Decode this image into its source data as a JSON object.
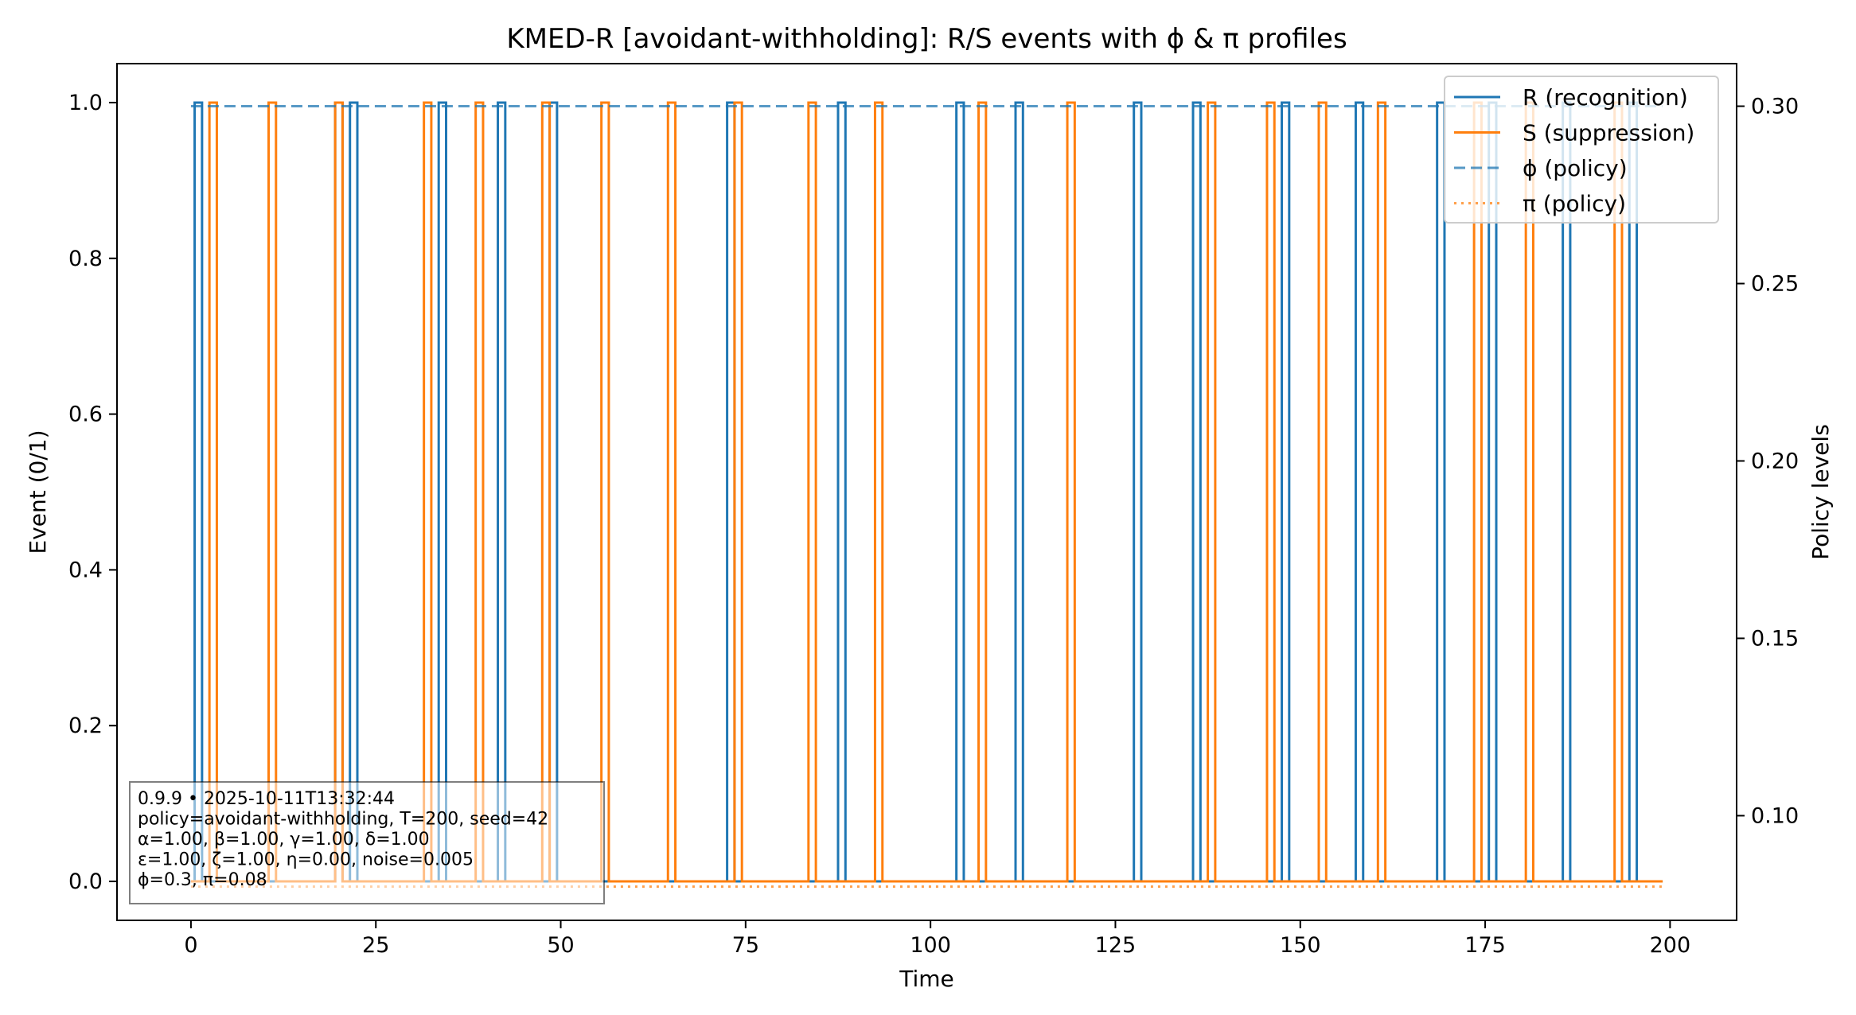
{
  "chart_data": {
    "type": "line",
    "title": "KMED-R [avoidant-withholding]: R/S events with ϕ & π profiles",
    "xlabel": "Time",
    "ylabel": "Event (0/1)",
    "y2label": "Policy levels",
    "xlim": [
      -10,
      209
    ],
    "ylim": [
      -0.05,
      1.05
    ],
    "y2lim": [
      0.0705,
      0.312
    ],
    "xticks": [
      0,
      25,
      50,
      75,
      100,
      125,
      150,
      175,
      200
    ],
    "yticks": [
      0.0,
      0.2,
      0.4,
      0.6,
      0.8,
      1.0
    ],
    "ytick_labels": [
      "0.0",
      "0.2",
      "0.4",
      "0.6",
      "0.8",
      "1.0"
    ],
    "y2ticks": [
      0.1,
      0.15,
      0.2,
      0.25,
      0.3
    ],
    "y2tick_labels": [
      "0.10",
      "0.15",
      "0.20",
      "0.25",
      "0.30"
    ],
    "t_max": 199,
    "series": [
      {
        "name": "R (recognition)",
        "style": "solid",
        "color": "#1f77b4",
        "axis": "left",
        "events": [
          1,
          20,
          22,
          34,
          42,
          49,
          73,
          88,
          104,
          112,
          128,
          136,
          148,
          158,
          169,
          176,
          186,
          195
        ]
      },
      {
        "name": "S (suppression)",
        "style": "solid",
        "color": "#ff7f0e",
        "axis": "left",
        "events": [
          3,
          11,
          20,
          32,
          39,
          48,
          56,
          65,
          74,
          84,
          93,
          107,
          119,
          138,
          146,
          153,
          161,
          174,
          181,
          193
        ]
      },
      {
        "name": "ϕ (policy)",
        "style": "dashed",
        "color": "#1f77b4",
        "axis": "right",
        "x": [
          0,
          199
        ],
        "y": [
          0.3,
          0.3
        ]
      },
      {
        "name": "π (policy)",
        "style": "dotted",
        "color": "#ff7f0e",
        "axis": "right",
        "x": [
          0,
          199
        ],
        "y": [
          0.08,
          0.08
        ]
      }
    ],
    "legend_position": "upper right",
    "grid": false,
    "annotation_box": {
      "lines": [
        "0.9.9  •  2025-10-11T13:32:44",
        "policy=avoidant-withholding, T=200, seed=42",
        "α=1.00, β=1.00, γ=1.00, δ=1.00",
        "ε=1.00, ζ=1.00, η=0.00, noise=0.005",
        "ϕ=0.3, π=0.08"
      ],
      "position": "lower left"
    }
  }
}
